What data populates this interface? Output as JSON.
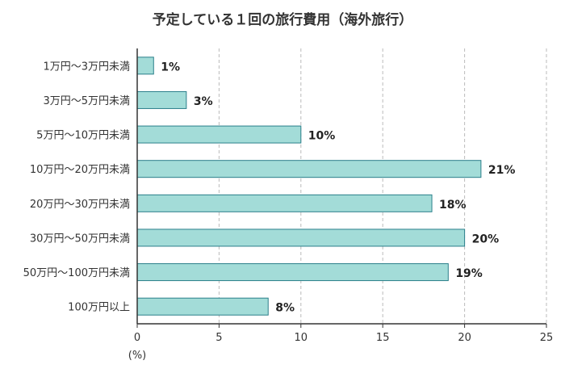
{
  "chart_data": {
    "type": "bar",
    "orientation": "horizontal",
    "title": "予定している１回の旅行費用（海外旅行）",
    "categories": [
      "1万円〜3万円未満",
      "3万円〜5万円未満",
      "5万円〜10万円未満",
      "10万円〜20万円未満",
      "20万円〜30万円未満",
      "30万円〜50万円未満",
      "50万円〜100万円未満",
      "100万円以上"
    ],
    "values": [
      1,
      3,
      10,
      21,
      18,
      20,
      19,
      8
    ],
    "value_labels": [
      "1%",
      "3%",
      "10%",
      "21%",
      "18%",
      "20%",
      "19%",
      "8%"
    ],
    "x_ticks": [
      "0",
      "5",
      "10",
      "15",
      "20",
      "25"
    ],
    "xlim": [
      0,
      25
    ],
    "x_unit": "(%)",
    "grid": "vertical dashed",
    "colors": {
      "bar_fill": "#a3dcd8",
      "bar_stroke": "#2a7f8a",
      "axis": "#333333",
      "grid": "#bbbbbb"
    }
  }
}
